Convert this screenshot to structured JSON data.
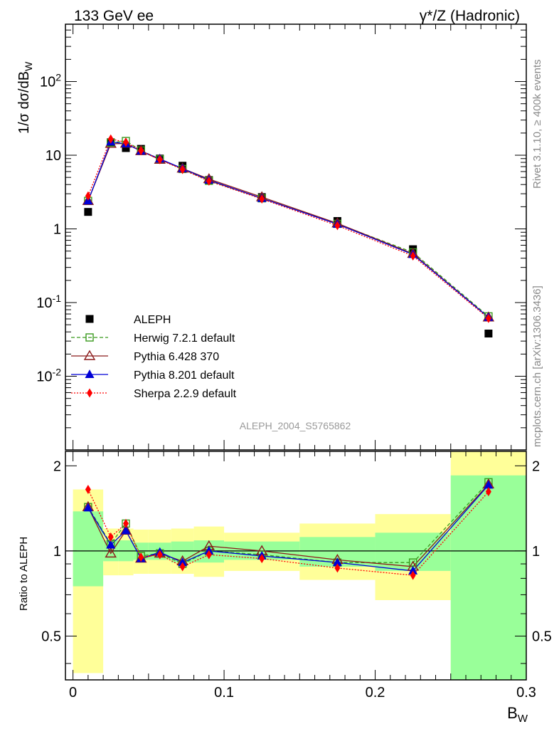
{
  "header": {
    "left": "133 GeV ee",
    "right": "γ*/Z (Hadronic)"
  },
  "side_text": {
    "rivet": "Rivet 3.1.10, ≥ 400k events",
    "site": "mcplots.cern.ch [arXiv:1306.3436]"
  },
  "colors": {
    "data": "#000000",
    "herwig": "#3a9a1e",
    "pythia6": "#8b1a1a",
    "pythia8": "#0000d6",
    "sherpa": "#ff0000",
    "band_inner": "#99ff99",
    "band_outer": "#ffff99"
  },
  "chart_data": [
    {
      "type": "scatter",
      "title": "ALEPH_2004_S5765862",
      "ylabel": "1/σ dσ/dB_W",
      "xlim": [
        -0.005,
        0.3
      ],
      "ylim": [
        0.001,
        600
      ],
      "yscale": "log",
      "y_ticks": [
        "10^-2",
        "10^-1",
        "1",
        "10",
        "10^2"
      ],
      "legend_position": "lower-left",
      "x": [
        0.01,
        0.025,
        0.035,
        0.045,
        0.0575,
        0.0725,
        0.09,
        0.125,
        0.175,
        0.225,
        0.275
      ],
      "series": [
        {
          "name": "ALEPH",
          "values": [
            1.7,
            15.0,
            12.5,
            12.2,
            9.0,
            7.2,
            4.6,
            2.7,
            1.28,
            0.53,
            0.038
          ]
        },
        {
          "name": "Herwig 7.2.1 default",
          "values": [
            2.4,
            14.8,
            15.6,
            11.6,
            8.8,
            6.5,
            4.5,
            2.6,
            1.17,
            0.48,
            0.065
          ]
        },
        {
          "name": "Pythia 6.428 370",
          "values": [
            2.4,
            14.3,
            14.4,
            11.4,
            8.7,
            6.6,
            4.75,
            2.7,
            1.19,
            0.46,
            0.063
          ]
        },
        {
          "name": "Pythia 8.201 default",
          "values": [
            2.4,
            15.2,
            14.3,
            11.4,
            8.9,
            6.6,
            4.6,
            2.6,
            1.16,
            0.45,
            0.063
          ]
        },
        {
          "name": "Sherpa 2.2.9 default",
          "values": [
            2.8,
            16.6,
            15.0,
            11.5,
            8.7,
            6.4,
            4.45,
            2.55,
            1.11,
            0.43,
            0.061
          ]
        }
      ]
    },
    {
      "type": "line",
      "ylabel": "Ratio to ALEPH",
      "xlabel": "B_W",
      "xlim": [
        -0.005,
        0.3
      ],
      "ylim": [
        0.35,
        2.25
      ],
      "x_ticks": [
        "0",
        "0.1",
        "0.2",
        "0.3"
      ],
      "y_ticks": [
        "0.5",
        "1",
        "2"
      ],
      "bin_edges": [
        0.0,
        0.02,
        0.03,
        0.04,
        0.05,
        0.065,
        0.08,
        0.1,
        0.15,
        0.2,
        0.25,
        0.3
      ],
      "band_inner": [
        [
          0.75,
          1.38
        ],
        [
          0.92,
          1.09
        ],
        [
          0.92,
          1.09
        ],
        [
          0.93,
          1.07
        ],
        [
          0.93,
          1.07
        ],
        [
          0.91,
          1.08
        ],
        [
          0.91,
          1.09
        ],
        [
          0.93,
          1.08
        ],
        [
          0.88,
          1.12
        ],
        [
          0.85,
          1.16
        ],
        [
          0.35,
          1.85
        ]
      ],
      "band_outer": [
        [
          0.37,
          1.65
        ],
        [
          0.82,
          1.2
        ],
        [
          0.82,
          1.2
        ],
        [
          0.83,
          1.19
        ],
        [
          0.83,
          1.19
        ],
        [
          0.83,
          1.2
        ],
        [
          0.81,
          1.22
        ],
        [
          0.85,
          1.16
        ],
        [
          0.79,
          1.25
        ],
        [
          0.67,
          1.35
        ],
        [
          0.35,
          2.25
        ]
      ],
      "x": [
        0.01,
        0.025,
        0.035,
        0.045,
        0.0575,
        0.0725,
        0.09,
        0.125,
        0.175,
        0.225,
        0.275
      ],
      "series": [
        {
          "name": "Herwig 7.2.1 default",
          "values": [
            1.43,
            1.06,
            1.25,
            0.96,
            0.98,
            0.9,
            1.0,
            0.97,
            0.91,
            0.91,
            1.75
          ]
        },
        {
          "name": "Pythia 6.428 370",
          "values": [
            1.43,
            0.98,
            1.18,
            0.94,
            0.98,
            0.92,
            1.04,
            1.0,
            0.93,
            0.88,
            1.72
          ]
        },
        {
          "name": "Pythia 8.201 default",
          "values": [
            1.42,
            1.05,
            1.18,
            0.94,
            0.99,
            0.91,
            1.0,
            0.96,
            0.91,
            0.85,
            1.71
          ]
        },
        {
          "name": "Sherpa 2.2.9 default",
          "values": [
            1.65,
            1.12,
            1.25,
            0.95,
            0.97,
            0.88,
            0.97,
            0.94,
            0.87,
            0.82,
            1.62
          ]
        }
      ]
    }
  ]
}
